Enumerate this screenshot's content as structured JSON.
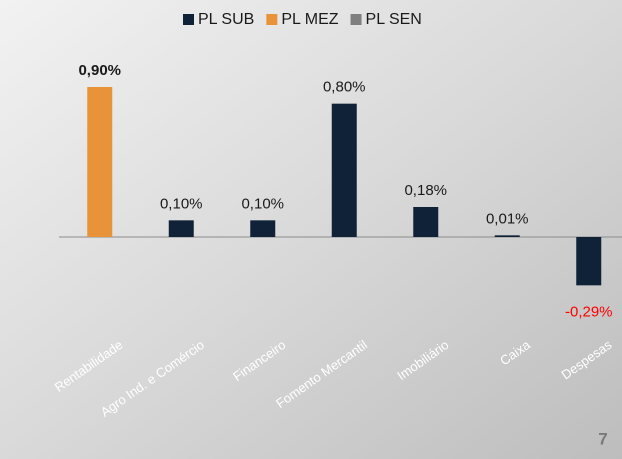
{
  "chart_data": {
    "type": "bar",
    "categories": [
      "Rentabilidade",
      "Agro Ind. e Comércio",
      "Financeiro",
      "Fomento Mercantil",
      "Imobiliário",
      "Caixa",
      "Despesas"
    ],
    "series": [
      {
        "name": "PL SUB",
        "color": "#0f2238",
        "values": [
          null,
          0.1,
          0.1,
          0.8,
          0.18,
          0.01,
          -0.29
        ],
        "value_labels": [
          null,
          "0,10%",
          "0,10%",
          "0,80%",
          "0,18%",
          "0,01%",
          "-0,29%"
        ]
      },
      {
        "name": "PL MEZ",
        "color": "#e8923a",
        "values": [
          0.9,
          null,
          null,
          null,
          null,
          null,
          null
        ],
        "value_labels": [
          "0,90%",
          null,
          null,
          null,
          null,
          null,
          null
        ],
        "value_label_bold": true
      },
      {
        "name": "PL SEN",
        "color": "#7f7f7f",
        "values": [
          null,
          null,
          null,
          null,
          null,
          null,
          null
        ],
        "value_labels": [
          null,
          null,
          null,
          null,
          null,
          null,
          null
        ]
      }
    ],
    "negative_label_color": "#ff0000",
    "page_number": "7"
  }
}
